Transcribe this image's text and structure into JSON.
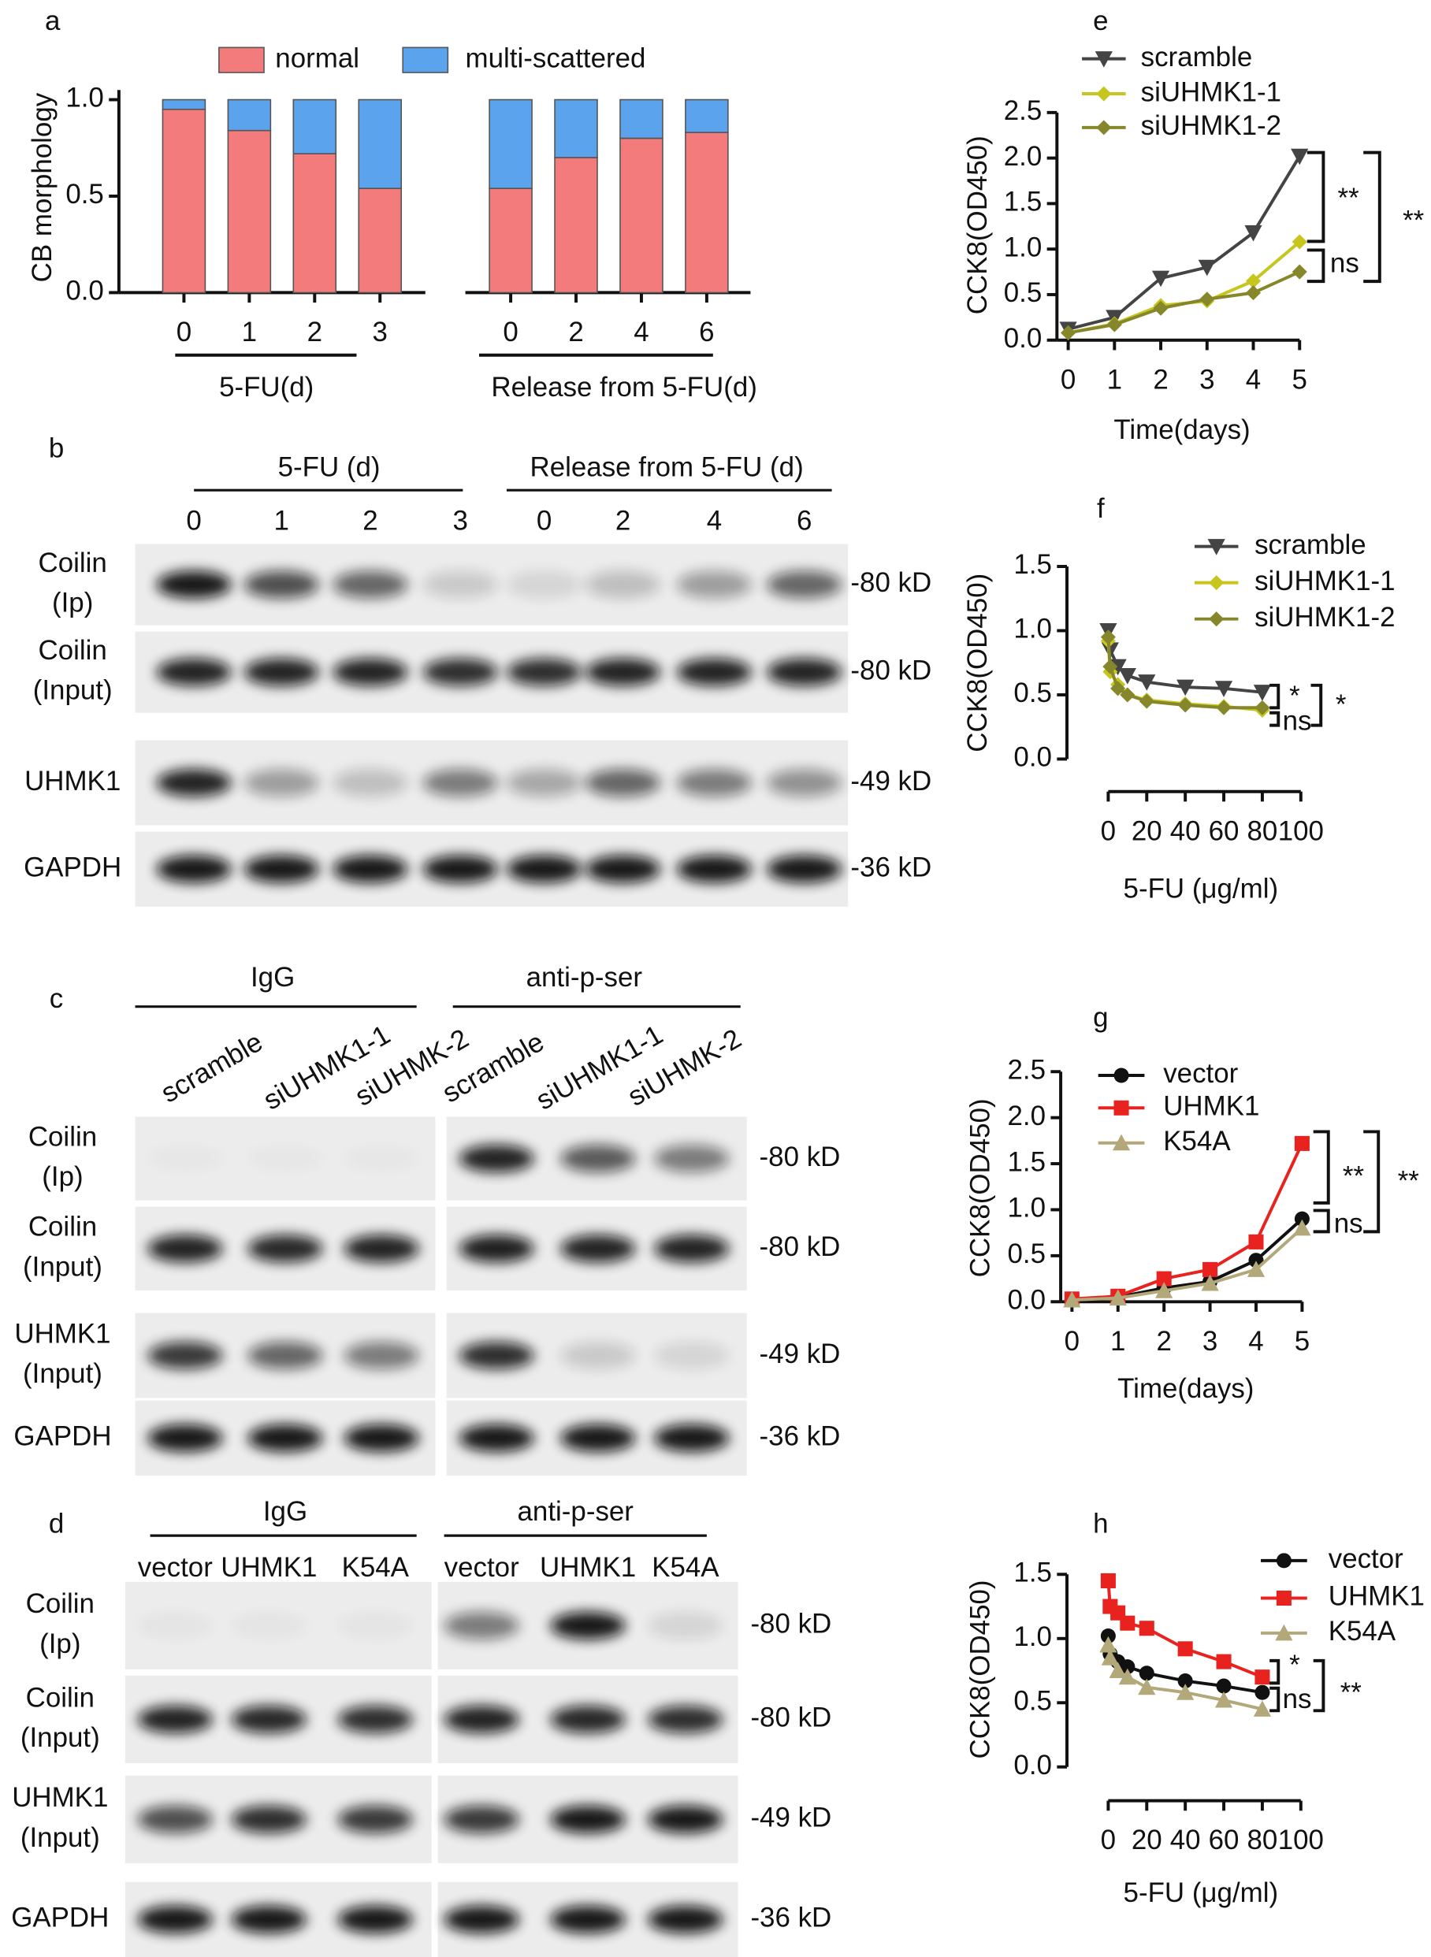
{
  "chart_data": [
    {
      "type": "bar",
      "stacked": true,
      "panel": "a",
      "ylabel": "CB morphology",
      "categories": [
        "0",
        "1",
        "2",
        "3",
        null,
        "0",
        "2",
        "4",
        "6"
      ],
      "group_labels": [
        "5-FU(d)",
        "Release from 5-FU(d)"
      ],
      "series": [
        {
          "name": "normal",
          "color": "#f47b7b",
          "values": [
            0.95,
            0.84,
            0.72,
            0.54,
            null,
            0.54,
            0.7,
            0.8,
            0.83
          ]
        },
        {
          "name": "multi-scattered",
          "color": "#5ba3ec",
          "values": [
            0.05,
            0.16,
            0.28,
            0.46,
            null,
            0.46,
            0.3,
            0.2,
            0.17
          ]
        }
      ],
      "ylim": [
        0,
        1.05
      ],
      "yticks": [
        {
          "value": 0,
          "label": "0.0"
        },
        {
          "value": 0.5,
          "label": "0.5"
        },
        {
          "value": 1,
          "label": "1.0"
        }
      ]
    },
    {
      "type": "line",
      "panel": "e",
      "xlabel": "Time(days)",
      "ylabel": "CCK8(OD450)",
      "x": [
        0,
        1,
        2,
        3,
        4,
        5
      ],
      "xlim": [
        0,
        5
      ],
      "xticks": [
        0,
        1,
        2,
        3,
        4,
        5
      ],
      "ylim": [
        0,
        2.5
      ],
      "yticks": [
        {
          "value": 0,
          "label": "0.0"
        },
        {
          "value": 0.5,
          "label": "0.5"
        },
        {
          "value": 1,
          "label": "1.0"
        },
        {
          "value": 1.5,
          "label": "1.5"
        },
        {
          "value": 2,
          "label": "2.0"
        },
        {
          "value": 2.5,
          "label": "2.5"
        }
      ],
      "series": [
        {
          "name": "scramble",
          "color": "#444444",
          "marker": "triangle-down",
          "values": [
            0.12,
            0.25,
            0.68,
            0.8,
            1.18,
            2.02
          ]
        },
        {
          "name": "siUHMK1-1",
          "color": "#c6c61e",
          "marker": "diamond",
          "values": [
            0.08,
            0.18,
            0.38,
            0.43,
            0.65,
            1.08
          ]
        },
        {
          "name": "siUHMK1-2",
          "color": "#86862a",
          "marker": "diamond",
          "values": [
            0.08,
            0.17,
            0.35,
            0.45,
            0.52,
            0.75
          ]
        }
      ],
      "annotations": [
        "**",
        "ns",
        "**"
      ]
    },
    {
      "type": "line",
      "panel": "f",
      "xlabel": "5-FU (μg/ml)",
      "ylabel": "CCK8(OD450)",
      "x": [
        0,
        1,
        5,
        10,
        20,
        40,
        60,
        80
      ],
      "xlim": [
        0,
        100
      ],
      "xticks": [
        0,
        20,
        40,
        60,
        80,
        100
      ],
      "ylim": [
        0,
        1.5
      ],
      "yticks": [
        {
          "value": 0,
          "label": "0.0"
        },
        {
          "value": 0.5,
          "label": "0.5"
        },
        {
          "value": 1,
          "label": "1.0"
        },
        {
          "value": 1.5,
          "label": "1.5"
        }
      ],
      "series": [
        {
          "name": "scramble",
          "color": "#444444",
          "marker": "triangle-down",
          "values": [
            1.0,
            0.85,
            0.72,
            0.65,
            0.6,
            0.56,
            0.55,
            0.52
          ]
        },
        {
          "name": "siUHMK1-1",
          "color": "#c6c61e",
          "marker": "diamond",
          "values": [
            0.92,
            0.68,
            0.58,
            0.5,
            0.46,
            0.43,
            0.41,
            0.38
          ]
        },
        {
          "name": "siUHMK1-2",
          "color": "#86862a",
          "marker": "diamond",
          "values": [
            0.95,
            0.72,
            0.55,
            0.5,
            0.45,
            0.42,
            0.4,
            0.4
          ]
        }
      ],
      "annotations": [
        "*",
        "ns",
        "*"
      ]
    },
    {
      "type": "line",
      "panel": "g",
      "xlabel": "Time(days)",
      "ylabel": "CCK8(OD450)",
      "x": [
        0,
        1,
        2,
        3,
        4,
        5
      ],
      "xlim": [
        0,
        5
      ],
      "xticks": [
        0,
        1,
        2,
        3,
        4,
        5
      ],
      "ylim": [
        0,
        2.5
      ],
      "yticks": [
        {
          "value": 0,
          "label": "0.0"
        },
        {
          "value": 0.5,
          "label": "0.5"
        },
        {
          "value": 1,
          "label": "1.0"
        },
        {
          "value": 1.5,
          "label": "1.5"
        },
        {
          "value": 2,
          "label": "2.0"
        },
        {
          "value": 2.5,
          "label": "2.5"
        }
      ],
      "series": [
        {
          "name": "vector",
          "color": "#111111",
          "marker": "circle",
          "values": [
            0.02,
            0.05,
            0.15,
            0.22,
            0.45,
            0.9
          ]
        },
        {
          "name": "UHMK1",
          "color": "#e8231f",
          "marker": "square",
          "values": [
            0.03,
            0.06,
            0.25,
            0.35,
            0.65,
            1.72
          ]
        },
        {
          "name": "K54A",
          "color": "#b3a87a",
          "marker": "triangle",
          "values": [
            0.02,
            0.04,
            0.12,
            0.2,
            0.35,
            0.8
          ]
        }
      ],
      "annotations": [
        "**",
        "ns",
        "**"
      ]
    },
    {
      "type": "line",
      "panel": "h",
      "xlabel": "5-FU (μg/ml)",
      "ylabel": "CCK8(OD450)",
      "x": [
        0,
        1,
        5,
        10,
        20,
        40,
        60,
        80
      ],
      "xlim": [
        0,
        100
      ],
      "xticks": [
        0,
        20,
        40,
        60,
        80,
        100
      ],
      "ylim": [
        0,
        1.5
      ],
      "yticks": [
        {
          "value": 0,
          "label": "0.0"
        },
        {
          "value": 0.5,
          "label": "0.5"
        },
        {
          "value": 1,
          "label": "1.0"
        },
        {
          "value": 1.5,
          "label": "1.5"
        }
      ],
      "series": [
        {
          "name": "vector",
          "color": "#111111",
          "marker": "circle",
          "values": [
            1.02,
            0.88,
            0.82,
            0.78,
            0.73,
            0.67,
            0.63,
            0.58
          ]
        },
        {
          "name": "UHMK1",
          "color": "#e8231f",
          "marker": "square",
          "values": [
            1.45,
            1.25,
            1.2,
            1.12,
            1.08,
            0.92,
            0.82,
            0.7
          ]
        },
        {
          "name": "K54A",
          "color": "#b3a87a",
          "marker": "triangle",
          "values": [
            0.95,
            0.85,
            0.75,
            0.7,
            0.62,
            0.58,
            0.52,
            0.45
          ]
        }
      ],
      "annotations": [
        "*",
        "ns",
        "**"
      ]
    }
  ],
  "blots": [
    {
      "panel": "b",
      "groups": [
        "5-FU (d)",
        "Release from 5-FU (d)"
      ],
      "lanes": [
        "0",
        "1",
        "2",
        "3",
        "0",
        "2",
        "4",
        "6"
      ],
      "rows": [
        {
          "label_lines": [
            "Coilin",
            "(Ip)"
          ],
          "marker": "-80 kD"
        },
        {
          "label_lines": [
            "Coilin",
            "(Input)"
          ],
          "marker": "-80 kD"
        },
        {
          "label_lines": [
            "UHMK1"
          ],
          "marker": "-49 kD"
        },
        {
          "label_lines": [
            "GAPDH"
          ],
          "marker": "-36 kD"
        }
      ]
    },
    {
      "panel": "c",
      "groups": [
        "IgG",
        "anti-p-ser"
      ],
      "lanes": [
        "scramble",
        "siUHMK1-1",
        "siUHMK-2",
        "scramble",
        "siUHMK1-1",
        "siUHMK-2"
      ],
      "rows": [
        {
          "label_lines": [
            "Coilin",
            "(Ip)"
          ],
          "marker": "-80 kD"
        },
        {
          "label_lines": [
            "Coilin",
            "(Input)"
          ],
          "marker": "-80 kD"
        },
        {
          "label_lines": [
            "UHMK1",
            "(Input)"
          ],
          "marker": "-49 kD"
        },
        {
          "label_lines": [
            "GAPDH"
          ],
          "marker": "-36 kD"
        }
      ]
    },
    {
      "panel": "d",
      "groups": [
        "IgG",
        "anti-p-ser"
      ],
      "lanes": [
        "vector",
        "UHMK1",
        "K54A",
        "vector",
        "UHMK1",
        "K54A"
      ],
      "rows": [
        {
          "label_lines": [
            "Coilin",
            "(Ip)"
          ],
          "marker": "-80 kD"
        },
        {
          "label_lines": [
            "Coilin",
            "(Input)"
          ],
          "marker": "-80 kD"
        },
        {
          "label_lines": [
            "UHMK1",
            "(Input)"
          ],
          "marker": "-49 kD"
        },
        {
          "label_lines": [
            "GAPDH"
          ],
          "marker": "-36 kD"
        }
      ]
    }
  ]
}
